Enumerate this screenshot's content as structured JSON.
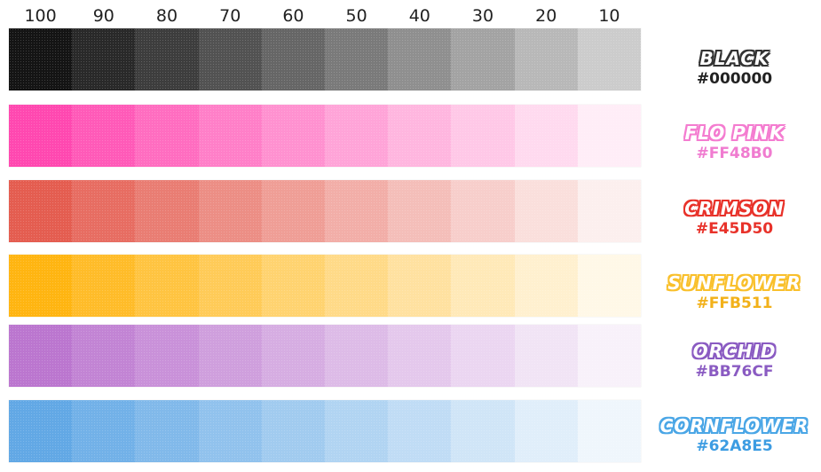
{
  "header": {
    "labels": [
      "100",
      "90",
      "80",
      "70",
      "60",
      "50",
      "40",
      "30",
      "20",
      "10"
    ]
  },
  "rows": [
    {
      "name": "BLACK",
      "hex_label": "#000000",
      "color": "#000000",
      "name_fill": "#333333",
      "hex_color": "#222222"
    },
    {
      "name": "FLO PINK",
      "hex_label": "#FF48B0",
      "color": "#FF48B0",
      "name_fill": "#F47CD0",
      "hex_color": "#F07CD0"
    },
    {
      "name": "CRIMSON",
      "hex_label": "#E45D50",
      "color": "#E45D50",
      "name_fill": "#E8322A",
      "hex_color": "#E8322A"
    },
    {
      "name": "SUNFLOWER",
      "hex_label": "#FFB511",
      "color": "#FFB511",
      "name_fill": "#F9C02C",
      "hex_color": "#F2B11A"
    },
    {
      "name": "ORCHID",
      "hex_label": "#BB76CF",
      "color": "#BB76CF",
      "name_fill": "#8A5BC2",
      "hex_color": "#8A5BC2"
    },
    {
      "name": "CORNFLOWER",
      "hex_label": "#62A8E5",
      "color": "#62A8E5",
      "name_fill": "#4AA6E6",
      "hex_color": "#3C9CE2"
    }
  ]
}
